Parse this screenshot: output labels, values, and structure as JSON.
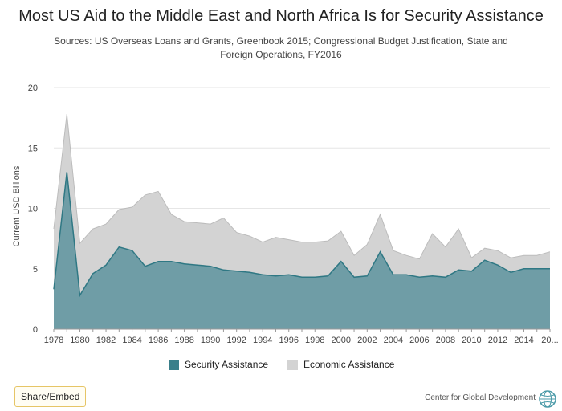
{
  "title": "Most US Aid to the Middle East and North Africa Is for Security Assistance",
  "subtitle": "Sources: US Overseas Loans and Grants, Greenbook 2015; Congressional Budget Justification, State and Foreign Operations, FY2016",
  "share_label": "Share/Embed",
  "credit": "Center for Global Development",
  "logo_icon": "globe-icon",
  "colors": {
    "security": "#6f9da6",
    "security_line": "#2f7884",
    "security_legend": "#3a7f8a",
    "economic": "#d3d3d3",
    "economic_line": "#bcbcbc",
    "grid": "#e6e6e6",
    "axis_text": "#444444"
  },
  "chart_data": {
    "type": "area",
    "stacked": true,
    "ylabel": "Current USD Billions",
    "xlabel": "",
    "ylim": [
      0,
      20
    ],
    "yticks": [
      0,
      5,
      10,
      15,
      20
    ],
    "x": [
      1978,
      1979,
      1980,
      1981,
      1982,
      1983,
      1984,
      1985,
      1986,
      1987,
      1988,
      1989,
      1990,
      1991,
      1992,
      1993,
      1994,
      1995,
      1996,
      1997,
      1998,
      1999,
      2000,
      2001,
      2002,
      2003,
      2004,
      2005,
      2006,
      2007,
      2008,
      2009,
      2010,
      2011,
      2012,
      2013,
      2014,
      2015,
      2016
    ],
    "xtick_labels": [
      "1978",
      "1980",
      "1982",
      "1984",
      "1986",
      "1988",
      "1990",
      "1992",
      "1994",
      "1996",
      "1998",
      "2000",
      "2002",
      "2004",
      "2006",
      "2008",
      "2010",
      "2012",
      "2014",
      "20..."
    ],
    "grid": true,
    "legend_position": "bottom",
    "series": [
      {
        "name": "Security Assistance",
        "color": "#6f9da6",
        "values": [
          3.3,
          13.0,
          2.8,
          4.6,
          5.3,
          6.8,
          6.5,
          5.2,
          5.6,
          5.6,
          5.4,
          5.3,
          5.2,
          4.9,
          4.8,
          4.7,
          4.5,
          4.4,
          4.5,
          4.3,
          4.3,
          4.4,
          5.6,
          4.3,
          4.4,
          6.4,
          4.5,
          4.5,
          4.3,
          4.4,
          4.3,
          4.9,
          4.8,
          5.7,
          5.3,
          4.7,
          5.0,
          5.0,
          5.0
        ]
      },
      {
        "name": "Economic Assistance",
        "color": "#d3d3d3",
        "values": [
          5.0,
          4.8,
          4.3,
          3.7,
          3.4,
          3.1,
          3.6,
          5.9,
          5.8,
          3.9,
          3.5,
          3.5,
          3.5,
          4.3,
          3.2,
          3.0,
          2.7,
          3.2,
          2.9,
          2.9,
          2.9,
          2.9,
          2.5,
          1.8,
          2.6,
          3.1,
          2.0,
          1.6,
          1.5,
          3.5,
          2.5,
          3.4,
          1.1,
          1.0,
          1.2,
          1.2,
          1.1,
          1.1,
          1.4
        ]
      }
    ]
  }
}
